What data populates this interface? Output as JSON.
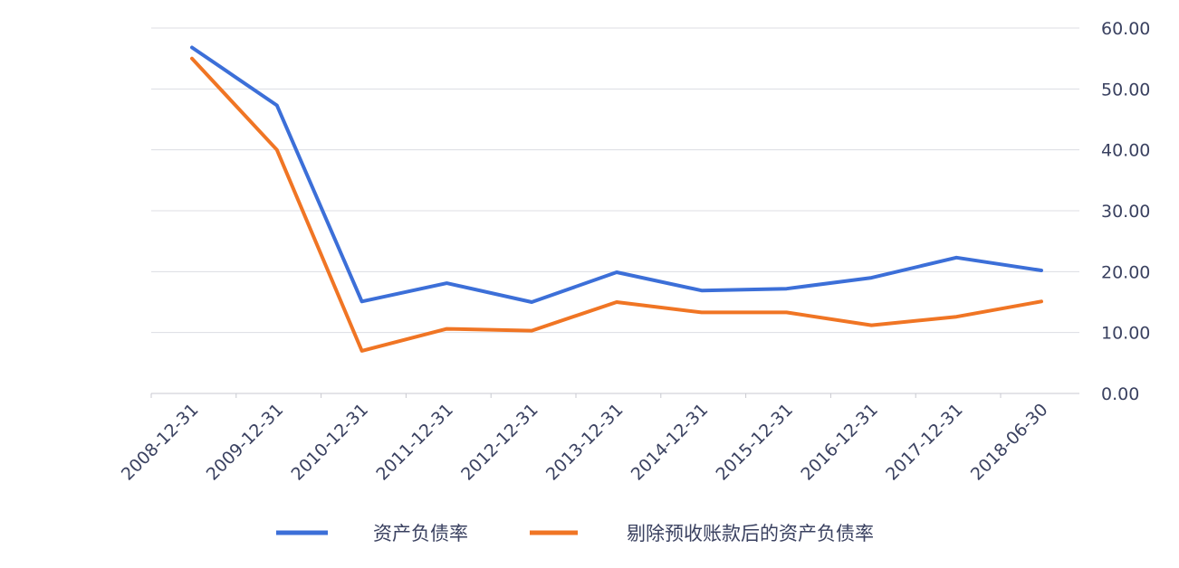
{
  "chart_data": {
    "type": "line",
    "title": "",
    "xlabel": "",
    "ylabel": "",
    "categories": [
      "2008-12-31",
      "2009-12-31",
      "2010-12-31",
      "2011-12-31",
      "2012-12-31",
      "2013-12-31",
      "2014-12-31",
      "2015-12-31",
      "2016-12-31",
      "2017-12-31",
      "2018-06-30"
    ],
    "series": [
      {
        "name": "资产负债率",
        "color": "#3c6fd8",
        "values": [
          56.8,
          47.3,
          15.1,
          18.1,
          15.0,
          19.9,
          16.9,
          17.2,
          19.0,
          22.3,
          20.2
        ]
      },
      {
        "name": "剔除预收账款后的资产负债率",
        "color": "#f07524",
        "values": [
          55.0,
          40.0,
          7.0,
          10.6,
          10.3,
          15.0,
          13.3,
          13.3,
          11.2,
          12.6,
          15.1
        ]
      }
    ],
    "ylim": [
      0,
      60
    ],
    "yticks": [
      "0.00",
      "10.00",
      "20.00",
      "30.00",
      "40.00",
      "50.00",
      "60.00"
    ],
    "y_axis_position": "right",
    "grid": true,
    "legend_position": "bottom"
  }
}
